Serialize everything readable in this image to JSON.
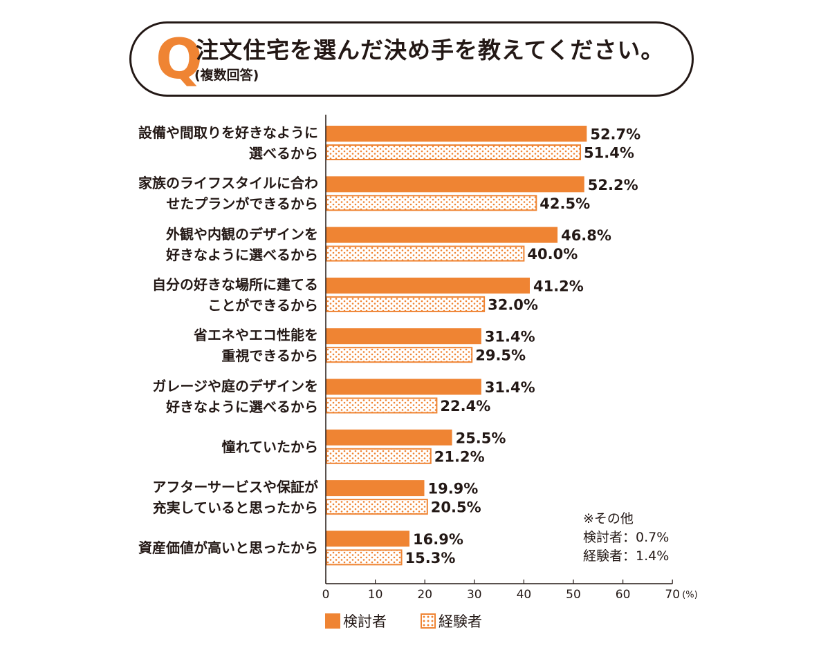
{
  "header": {
    "q_letter": "Q",
    "question": "注文住宅を選んだ決め手を教えてください。",
    "note": "(複数回答)"
  },
  "colors": {
    "considering": "#ef8433",
    "experienced_border": "#ef8433",
    "axis": "#231815"
  },
  "chart_data": {
    "type": "bar",
    "orientation": "horizontal",
    "categories": [
      [
        "設備や間取りを好きなように",
        "選べるから"
      ],
      [
        "家族のライフスタイルに合わ",
        "せたプランができるから"
      ],
      [
        "外観や内観のデザインを",
        "好きなように選べるから"
      ],
      [
        "自分の好きな場所に建てる",
        "ことができるから"
      ],
      [
        "省エネやエコ性能を",
        "重視できるから"
      ],
      [
        "ガレージや庭のデザインを",
        "好きなように選べるから"
      ],
      [
        "憧れていたから"
      ],
      [
        "アフターサービスや保証が",
        "充実していると思ったから"
      ],
      [
        "資産価値が高いと思ったから"
      ]
    ],
    "series": [
      {
        "name": "検討者",
        "values": [
          52.7,
          52.2,
          46.8,
          41.2,
          31.4,
          31.4,
          25.5,
          19.9,
          16.9
        ]
      },
      {
        "name": "経験者",
        "values": [
          51.4,
          42.5,
          40.0,
          32.0,
          29.5,
          22.4,
          21.2,
          20.5,
          15.3
        ]
      }
    ],
    "value_labels": [
      [
        "52.7%",
        "52.2%",
        "46.8%",
        "41.2%",
        "31.4%",
        "31.4%",
        "25.5%",
        "19.9%",
        "16.9%"
      ],
      [
        "51.4%",
        "42.5%",
        "40.0%",
        "32.0%",
        "29.5%",
        "22.4%",
        "21.2%",
        "20.5%",
        "15.3%"
      ]
    ],
    "xlim": [
      0,
      70
    ],
    "xticks": [
      "0",
      "10",
      "20",
      "30",
      "40",
      "50",
      "60",
      "70"
    ],
    "x_unit": "(%)",
    "grid": false,
    "legend_position": "bottom",
    "annotation": [
      "※その他",
      "検討者：0.7%",
      "経験者：1.4%"
    ]
  }
}
